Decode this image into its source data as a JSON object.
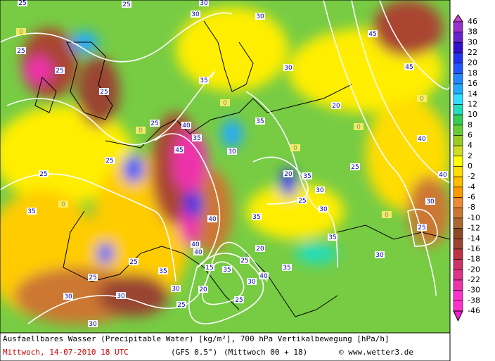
{
  "map": {
    "contour_labels": [
      "25",
      "25",
      "25",
      "25",
      "30",
      "30",
      "30",
      "35",
      "45",
      "45",
      "30",
      "25",
      "20",
      "35",
      "25",
      "40",
      "40",
      "45",
      "35",
      "25",
      "25",
      "30",
      "40",
      "25",
      "20",
      "35",
      "30",
      "25",
      "35",
      "30",
      "40",
      "35",
      "40",
      "15",
      "40",
      "25",
      "30",
      "35",
      "25",
      "30",
      "25",
      "20",
      "30",
      "35",
      "25",
      "30",
      "30",
      "30",
      "25",
      "35",
      "20",
      "25",
      "30",
      "35",
      "40",
      "0",
      "0",
      "0",
      "0",
      "0",
      "0",
      "0",
      "0"
    ],
    "colorbar": {
      "labels": [
        "46",
        "38",
        "30",
        "22",
        "20",
        "18",
        "16",
        "14",
        "12",
        "10",
        "8",
        "6",
        "4",
        "2",
        "0",
        "-2",
        "-4",
        "-6",
        "-8",
        "-10",
        "-12",
        "-14",
        "-16",
        "-18",
        "-20",
        "-22",
        "-30",
        "-38",
        "-46"
      ],
      "colors": [
        "#cc44cc",
        "#9933cc",
        "#6622cc",
        "#3311cc",
        "#2233ee",
        "#2255ff",
        "#2288ff",
        "#22aaff",
        "#33ddff",
        "#22ddbb",
        "#33cc55",
        "#66cc33",
        "#99cc22",
        "#ccdd22",
        "#ffff00",
        "#ffdd00",
        "#ffbb00",
        "#ff9900",
        "#ee8833",
        "#cc7733",
        "#aa6633",
        "#8a4a22",
        "#994433",
        "#bb3344",
        "#cc3366",
        "#dd3388",
        "#ee33aa",
        "#ff33cc",
        "#ff33cc",
        "#ee22cc"
      ]
    },
    "caption": {
      "line1": "Ausfaellbares Wasser (Precipitable Water) [kg/m²], 700 hPa Vertikalbewegung [hPa/h]",
      "date": "Mittwoch, 14-07-2010  18 UTC",
      "model": "(GFS 0.5°)",
      "run": "(Mittwoch 00 + 18)",
      "credit": "© www.wetter3.de"
    }
  }
}
